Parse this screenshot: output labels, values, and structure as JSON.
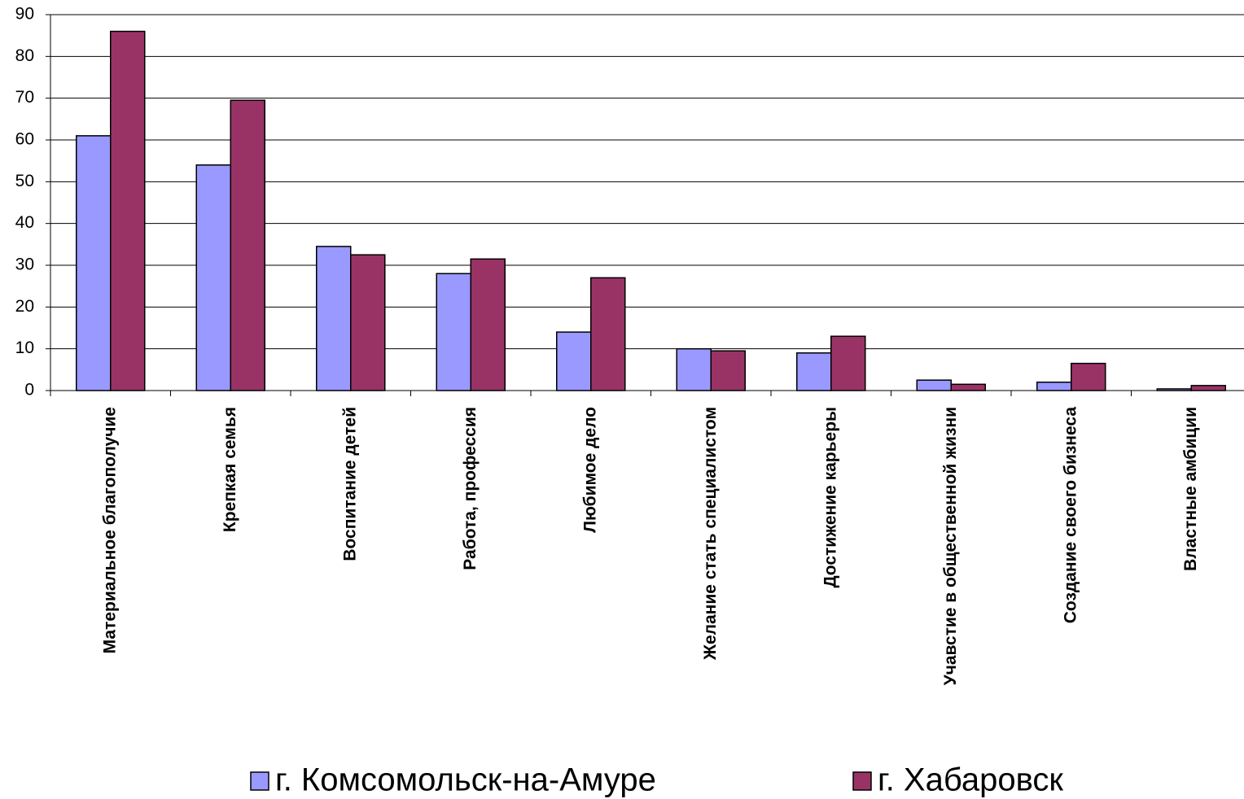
{
  "chart_data": {
    "type": "bar",
    "categories": [
      "Материальное благополучие",
      "Крепкая семья",
      "Воспитание детей",
      "Работа, профессия",
      "Любимое дело",
      "Желание стать специалистом",
      "Достижение карьеры",
      "Учавстие в общественной жизни",
      "Создание своего бизнеса",
      "Властные амбиции"
    ],
    "series": [
      {
        "name": "г. Комсомольск-на-Амуре",
        "color": "#9999ff",
        "values": [
          61,
          54,
          34.5,
          28,
          14,
          10,
          9,
          2.5,
          2,
          0.4
        ]
      },
      {
        "name": "г. Хабаровск",
        "color": "#993366",
        "values": [
          86,
          69.5,
          32.5,
          31.5,
          27,
          9.5,
          13,
          1.5,
          6.5,
          1.2
        ]
      }
    ],
    "ylim": [
      0,
      90
    ],
    "yticks": [
      0,
      10,
      20,
      30,
      40,
      50,
      60,
      70,
      80,
      90
    ],
    "grid": true,
    "legend": "bottom"
  }
}
